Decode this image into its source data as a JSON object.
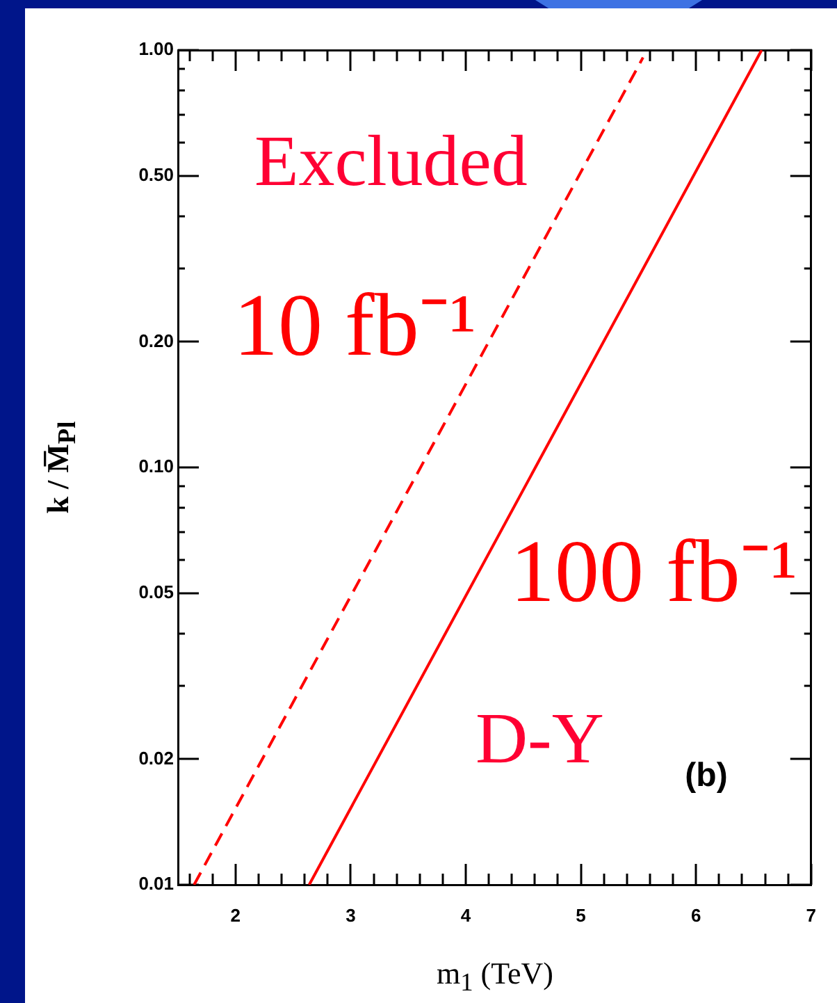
{
  "chart_data": {
    "type": "line",
    "xlabel": "m$_{1}$ (TeV)",
    "ylabel": "k / M̅$_{Pl}$",
    "series": [
      {
        "name": "10 fb⁻¹",
        "color": "#ff0000",
        "line_style": "dashed",
        "x": [
          1.64,
          5.54
        ],
        "values": [
          0.01,
          0.96
        ]
      },
      {
        "name": "100 fb⁻¹",
        "color": "#ff0000",
        "line_style": "solid",
        "x": [
          2.64,
          6.57
        ],
        "values": [
          0.01,
          1.0
        ]
      }
    ],
    "xlim": [
      1.5,
      7
    ],
    "ylim": [
      0.01,
      1
    ],
    "xticks": [
      {
        "value": 1.6,
        "label": null
      },
      {
        "value": 1.8,
        "label": null
      },
      2,
      {
        "value": 2.2,
        "label": null
      },
      {
        "value": 2.4,
        "label": null
      },
      {
        "value": 2.6,
        "label": null
      },
      {
        "value": 2.8,
        "label": null
      },
      3,
      {
        "value": 3.2,
        "label": null
      },
      {
        "value": 3.4,
        "label": null
      },
      {
        "value": 3.6,
        "label": null
      },
      {
        "value": 3.8,
        "label": null
      },
      4,
      {
        "value": 4.2,
        "label": null
      },
      {
        "value": 4.4,
        "label": null
      },
      {
        "value": 4.6,
        "label": null
      },
      {
        "value": 4.8,
        "label": null
      },
      5,
      {
        "value": 5.2,
        "label": null
      },
      {
        "value": 5.4,
        "label": null
      },
      {
        "value": 5.6,
        "label": null
      },
      {
        "value": 5.8,
        "label": null
      },
      6,
      {
        "value": 6.2,
        "label": null
      },
      {
        "value": 6.4,
        "label": null
      },
      {
        "value": 6.6,
        "label": null
      },
      {
        "value": 6.8,
        "label": null
      },
      7
    ],
    "yticks": [
      0.01,
      0.02,
      {
        "value": 0.03,
        "label": null
      },
      {
        "value": 0.04,
        "label": null
      },
      0.05,
      {
        "value": 0.06,
        "label": null
      },
      {
        "value": 0.07,
        "label": null
      },
      {
        "value": 0.08,
        "label": null
      },
      {
        "value": 0.09,
        "label": null
      },
      {
        "value": 0.1,
        "label": "0.10"
      },
      {
        "value": 0.2,
        "label": "0.20"
      },
      {
        "value": 0.3,
        "label": null
      },
      {
        "value": 0.4,
        "label": null
      },
      {
        "value": 0.5,
        "label": "0.50"
      },
      {
        "value": 0.6,
        "label": null
      },
      {
        "value": 0.7,
        "label": null
      },
      {
        "value": 0.8,
        "label": null
      },
      {
        "value": 0.9,
        "label": null
      },
      {
        "value": 1,
        "label": "1.00"
      }
    ],
    "log": "y",
    "annotations": [
      "Excluded",
      "D-Y",
      "(b)"
    ]
  }
}
